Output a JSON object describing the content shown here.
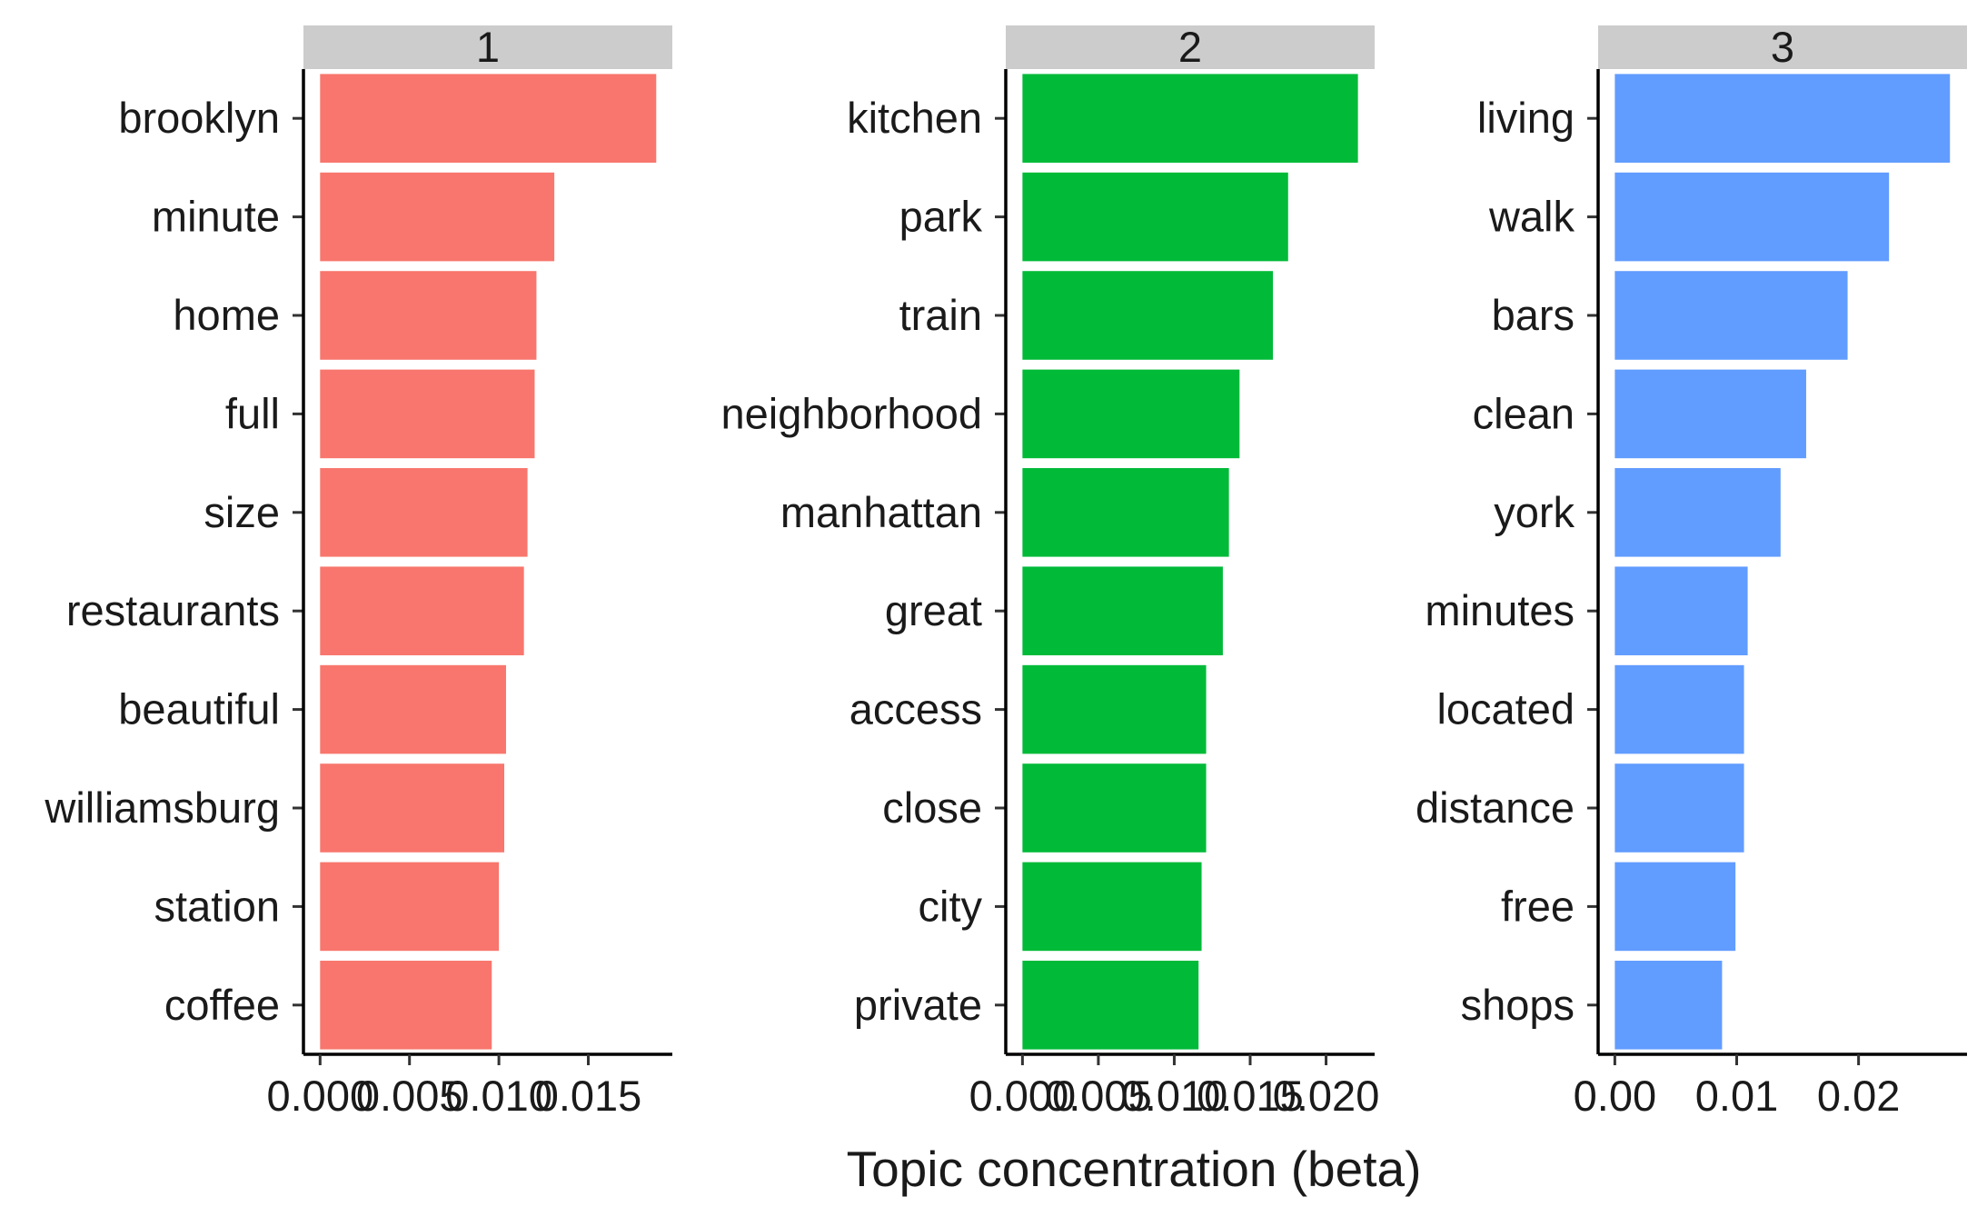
{
  "chart_data": {
    "type": "bar",
    "orientation": "horizontal",
    "xlabel": "Topic concentration (beta)",
    "ylabel": "",
    "grid": false,
    "legend": "none",
    "panels": [
      {
        "strip": "1",
        "color": "#F8766D",
        "categories": [
          "brooklyn",
          "minute",
          "home",
          "full",
          "size",
          "restaurants",
          "beautiful",
          "williamsburg",
          "station",
          "coffee"
        ],
        "values": [
          0.0188,
          0.0131,
          0.0121,
          0.012,
          0.0116,
          0.0114,
          0.0104,
          0.0103,
          0.01,
          0.0096
        ],
        "ticks": [
          0,
          0.005,
          0.01,
          0.015
        ],
        "tick_labels": [
          "0.000",
          "0.005",
          "0.010",
          "0.015"
        ],
        "xlim": [
          -0.00093,
          0.0197
        ]
      },
      {
        "strip": "2",
        "color": "#00BA38",
        "categories": [
          "kitchen",
          "park",
          "train",
          "neighborhood",
          "manhattan",
          "great",
          "access",
          "close",
          "city",
          "private"
        ],
        "values": [
          0.0221,
          0.0175,
          0.0165,
          0.0143,
          0.0136,
          0.0132,
          0.0121,
          0.0121,
          0.0118,
          0.0116
        ],
        "ticks": [
          0,
          0.005,
          0.01,
          0.015,
          0.02
        ],
        "tick_labels": [
          "0.000",
          "0.005",
          "0.010",
          "0.015",
          "0.020"
        ],
        "xlim": [
          -0.0011,
          0.0232
        ]
      },
      {
        "strip": "3",
        "color": "#619CFF",
        "categories": [
          "living",
          "walk",
          "bars",
          "clean",
          "york",
          "minutes",
          "located",
          "distance",
          "free",
          "shops"
        ],
        "values": [
          0.0275,
          0.0225,
          0.0191,
          0.0157,
          0.0136,
          0.0109,
          0.0106,
          0.0106,
          0.0099,
          0.0088
        ],
        "ticks": [
          0,
          0.01,
          0.02
        ],
        "tick_labels": [
          "0.00",
          "0.01",
          "0.02"
        ],
        "xlim": [
          -0.00137,
          0.0289
        ]
      }
    ]
  }
}
